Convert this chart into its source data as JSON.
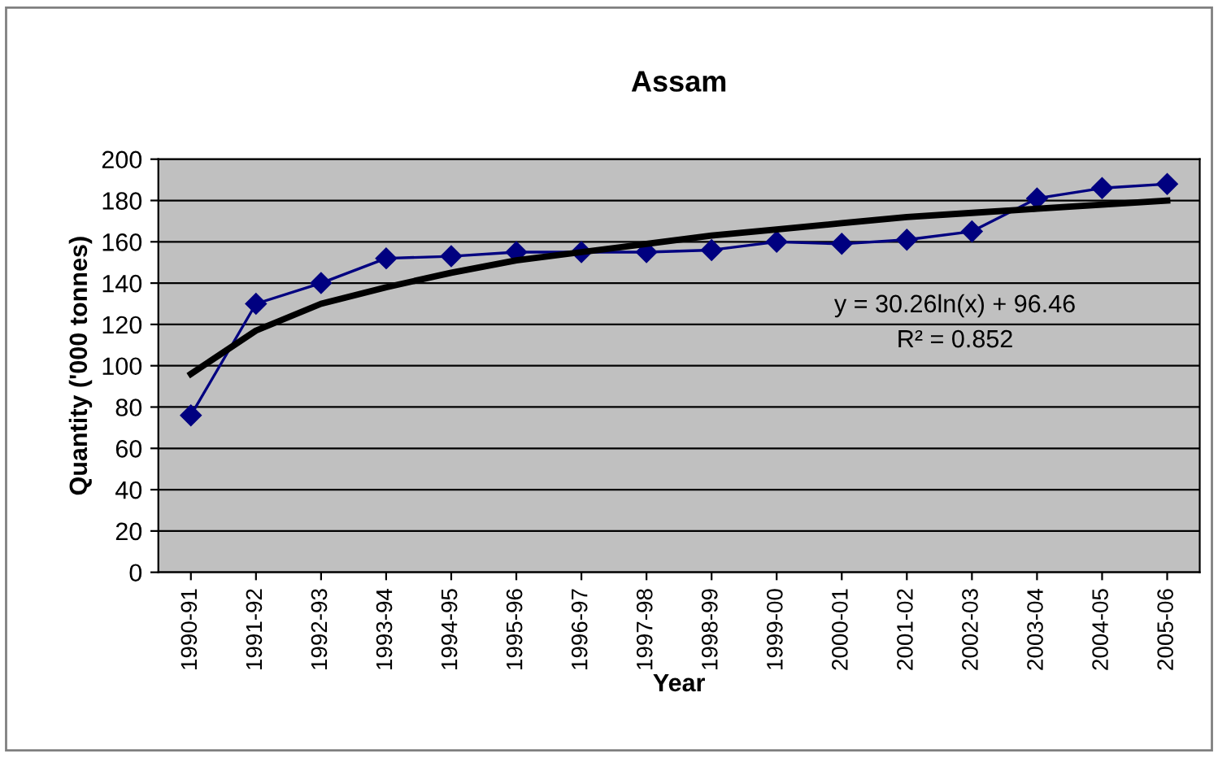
{
  "chart_data": {
    "type": "line",
    "title": "Assam",
    "xlabel": "Year",
    "ylabel": "Quantity ('000 tonnes)",
    "categories": [
      "1990-91",
      "1991-92",
      "1992-93",
      "1993-94",
      "1994-95",
      "1995-96",
      "1996-97",
      "1997-98",
      "1998-99",
      "1999-00",
      "2000-01",
      "2001-02",
      "2002-03",
      "2003-04",
      "2004-05",
      "2005-06"
    ],
    "series": [
      {
        "color": "#000080",
        "marker": "diamond",
        "values": [
          76,
          130,
          140,
          152,
          153,
          155,
          155,
          155,
          156,
          160,
          159,
          161,
          165,
          181,
          186,
          188
        ]
      },
      {
        "color": "#000000",
        "marker": "none",
        "values": [
          96,
          117,
          130,
          138,
          145,
          151,
          155,
          159,
          163,
          166,
          169,
          172,
          174,
          176,
          178,
          180
        ]
      }
    ],
    "ylim": [
      0,
      200
    ],
    "yticks": [
      0,
      20,
      40,
      60,
      80,
      100,
      120,
      140,
      160,
      180,
      200
    ],
    "grid": "y",
    "legend": false,
    "annotations": [
      "y = 30.26ln(x) + 96.46",
      "R² = 0.852"
    ]
  }
}
